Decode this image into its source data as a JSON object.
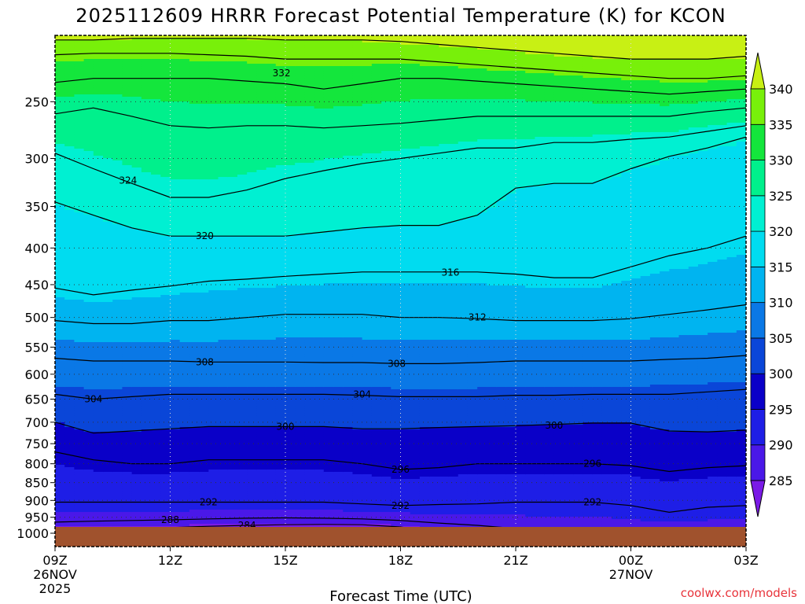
{
  "chart_data": {
    "type": "heatmap",
    "title": "2025112609 HRRR Forecast Potential Temperature (K) for KCON",
    "xlabel": "Forecast Time (UTC)",
    "ylabel": "",
    "y_scale": "log",
    "ylim": [
      1000,
      200
    ],
    "x_ticks": [
      {
        "label": "09Z",
        "sub1": "26NOV",
        "sub2": "2025",
        "hour": 0
      },
      {
        "label": "12Z",
        "sub1": "",
        "sub2": "",
        "hour": 3
      },
      {
        "label": "15Z",
        "sub1": "",
        "sub2": "",
        "hour": 6
      },
      {
        "label": "18Z",
        "sub1": "",
        "sub2": "",
        "hour": 9
      },
      {
        "label": "21Z",
        "sub1": "",
        "sub2": "",
        "hour": 12
      },
      {
        "label": "00Z",
        "sub1": "27NOV",
        "sub2": "",
        "hour": 15
      },
      {
        "label": "03Z",
        "sub1": "",
        "sub2": "",
        "hour": 18
      }
    ],
    "y_ticks": [
      "250",
      "300",
      "350",
      "400",
      "450",
      "500",
      "550",
      "600",
      "650",
      "700",
      "750",
      "800",
      "850",
      "900",
      "950",
      "1000"
    ],
    "y_tick_values": [
      250,
      300,
      350,
      400,
      450,
      500,
      550,
      600,
      650,
      700,
      750,
      800,
      850,
      900,
      950,
      1000
    ],
    "grid": true,
    "colorbar": {
      "levels": [
        285,
        290,
        295,
        300,
        305,
        310,
        315,
        320,
        325,
        330,
        335,
        340
      ],
      "labels": [
        "285",
        "290",
        "295",
        "300",
        "305",
        "310",
        "315",
        "320",
        "325",
        "330",
        "335",
        "340"
      ],
      "colors": [
        "#7a1ae6",
        "#4a18e8",
        "#1e1ee6",
        "#0a00c8",
        "#0a46d8",
        "#0a78e6",
        "#00b4f0",
        "#00dcf0",
        "#00f0d2",
        "#00f08c",
        "#14e63c",
        "#78f00a",
        "#c8f014"
      ]
    },
    "terrain_color": "#a0522d",
    "profile_hours": [
      0,
      1,
      2,
      3,
      4,
      5,
      6,
      7,
      8,
      9,
      10,
      11,
      12,
      13,
      14,
      15,
      16,
      17,
      18
    ],
    "isentropes": [
      {
        "theta": 284,
        "p": [
          985,
          985,
          983,
          982,
          978,
          975,
          973,
          972,
          973,
          980,
          1000,
          1000,
          1000,
          1000,
          1000,
          1000,
          1000,
          1000,
          1000
        ]
      },
      {
        "theta": 288,
        "p": [
          965,
          962,
          960,
          958,
          955,
          953,
          952,
          953,
          955,
          960,
          968,
          975,
          985,
          990,
          995,
          1000,
          1000,
          1000,
          1000
        ]
      },
      {
        "theta": 292,
        "p": [
          905,
          905,
          905,
          905,
          905,
          905,
          905,
          905,
          910,
          915,
          912,
          910,
          905,
          905,
          905,
          915,
          935,
          920,
          915
        ]
      },
      {
        "theta": 296,
        "p": [
          770,
          790,
          800,
          800,
          790,
          790,
          790,
          790,
          800,
          815,
          810,
          800,
          800,
          800,
          800,
          805,
          820,
          810,
          805
        ]
      },
      {
        "theta": 300,
        "p": [
          700,
          725,
          720,
          715,
          710,
          710,
          710,
          710,
          715,
          715,
          712,
          710,
          708,
          705,
          702,
          702,
          720,
          722,
          718
        ]
      },
      {
        "theta": 304,
        "p": [
          640,
          650,
          645,
          640,
          640,
          640,
          640,
          640,
          642,
          645,
          645,
          645,
          642,
          642,
          640,
          640,
          640,
          635,
          630
        ]
      },
      {
        "theta": 308,
        "p": [
          570,
          575,
          575,
          575,
          577,
          577,
          577,
          578,
          578,
          580,
          580,
          578,
          575,
          575,
          575,
          575,
          572,
          570,
          565
        ]
      },
      {
        "theta": 312,
        "p": [
          505,
          510,
          510,
          505,
          505,
          500,
          495,
          495,
          495,
          500,
          500,
          502,
          505,
          505,
          505,
          502,
          495,
          488,
          480
        ]
      },
      {
        "theta": 316,
        "p": [
          455,
          465,
          458,
          452,
          445,
          442,
          438,
          435,
          432,
          432,
          432,
          432,
          435,
          440,
          440,
          425,
          410,
          400,
          385
        ]
      },
      {
        "theta": 320,
        "p": [
          345,
          360,
          375,
          385,
          385,
          385,
          385,
          380,
          375,
          372,
          372,
          360,
          330,
          325,
          325,
          310,
          298,
          290,
          280
        ]
      },
      {
        "theta": 324,
        "p": [
          295,
          310,
          325,
          340,
          340,
          332,
          320,
          312,
          305,
          300,
          295,
          290,
          290,
          285,
          285,
          282,
          280,
          275,
          270
        ]
      },
      {
        "theta": 328,
        "p": [
          260,
          255,
          262,
          270,
          272,
          270,
          270,
          272,
          270,
          268,
          265,
          262,
          262,
          262,
          262,
          262,
          262,
          258,
          255
        ]
      },
      {
        "theta": 332,
        "p": [
          235,
          232,
          232,
          232,
          232,
          234,
          236,
          240,
          236,
          232,
          232,
          234,
          236,
          238,
          240,
          242,
          244,
          242,
          240
        ]
      },
      {
        "theta": 336,
        "p": [
          215,
          214,
          214,
          214,
          215,
          216,
          218,
          218,
          218,
          218,
          220,
          222,
          224,
          226,
          228,
          230,
          232,
          232,
          230
        ]
      },
      {
        "theta": 340,
        "p": [
          205,
          205,
          204,
          204,
          204,
          204,
          205,
          205,
          205,
          206,
          208,
          210,
          212,
          214,
          216,
          218,
          218,
          218,
          216
        ]
      }
    ],
    "contour_labels": [
      {
        "text": "332",
        "hour": 5.9,
        "p": 228
      },
      {
        "text": "324",
        "hour": 1.9,
        "p": 322
      },
      {
        "text": "320",
        "hour": 3.9,
        "p": 385
      },
      {
        "text": "316",
        "hour": 10.3,
        "p": 433
      },
      {
        "text": "312",
        "hour": 11.0,
        "p": 500
      },
      {
        "text": "308",
        "hour": 3.9,
        "p": 577
      },
      {
        "text": "308",
        "hour": 8.9,
        "p": 580
      },
      {
        "text": "304",
        "hour": 1.0,
        "p": 650
      },
      {
        "text": "304",
        "hour": 8.0,
        "p": 640
      },
      {
        "text": "300",
        "hour": 6.0,
        "p": 710
      },
      {
        "text": "300",
        "hour": 13.0,
        "p": 707
      },
      {
        "text": "296",
        "hour": 9.0,
        "p": 815
      },
      {
        "text": "296",
        "hour": 14.0,
        "p": 800
      },
      {
        "text": "292",
        "hour": 4.0,
        "p": 905
      },
      {
        "text": "292",
        "hour": 9.0,
        "p": 915
      },
      {
        "text": "292",
        "hour": 14.0,
        "p": 905
      },
      {
        "text": "288",
        "hour": 3.0,
        "p": 958
      },
      {
        "text": "284",
        "hour": 5.0,
        "p": 975
      }
    ]
  },
  "credit": "coolwx.com/models"
}
